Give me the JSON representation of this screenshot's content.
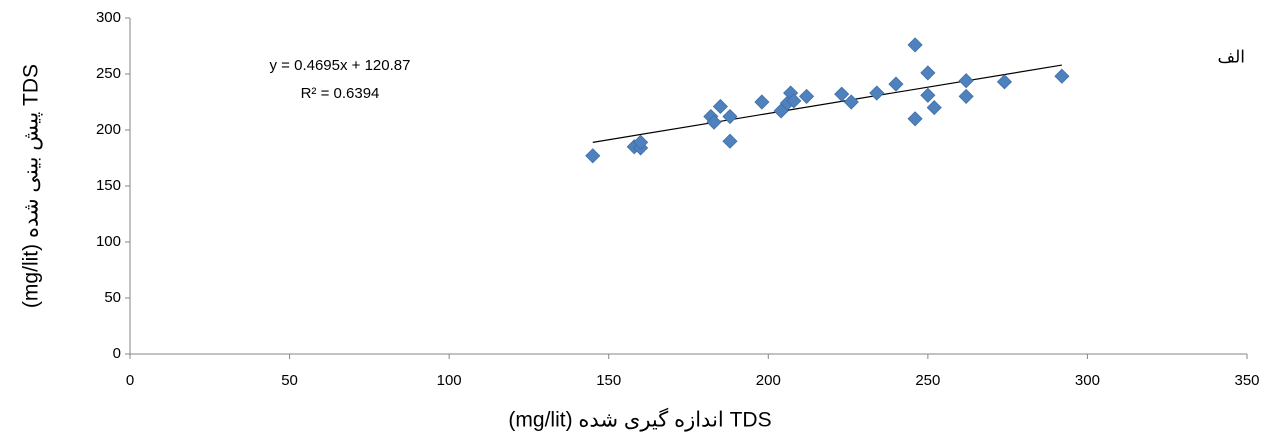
{
  "chart_data": {
    "type": "scatter",
    "corner_label": "الف",
    "x_label": "TDS اندازه گیری شده (mg/lit)",
    "y_label": "TDS پیش بینی شده (mg/lit)",
    "x": [
      145,
      158,
      160,
      160,
      182,
      183,
      185,
      188,
      188,
      198,
      204,
      206,
      207,
      208,
      212,
      223,
      226,
      234,
      240,
      246,
      246,
      250,
      250,
      252,
      262,
      262,
      274,
      292
    ],
    "values": [
      177,
      185,
      184,
      189,
      212,
      207,
      221,
      212,
      190,
      225,
      217,
      224,
      233,
      226,
      230,
      232,
      225,
      233,
      241,
      276,
      210,
      251,
      231,
      220,
      244,
      230,
      243,
      248
    ],
    "color": "#4f81bd",
    "xlim": [
      0,
      350
    ],
    "xticks": [
      0,
      50,
      100,
      150,
      200,
      250,
      300,
      350
    ],
    "ylim": [
      0,
      300
    ],
    "yticks": [
      0,
      50,
      100,
      150,
      200,
      250,
      300
    ],
    "grid": false,
    "trendline": {
      "slope": 0.4695,
      "intercept": 120.87,
      "label": "y = 0.4695x + 120.87",
      "r2_label": "R² = 0.6394"
    }
  }
}
